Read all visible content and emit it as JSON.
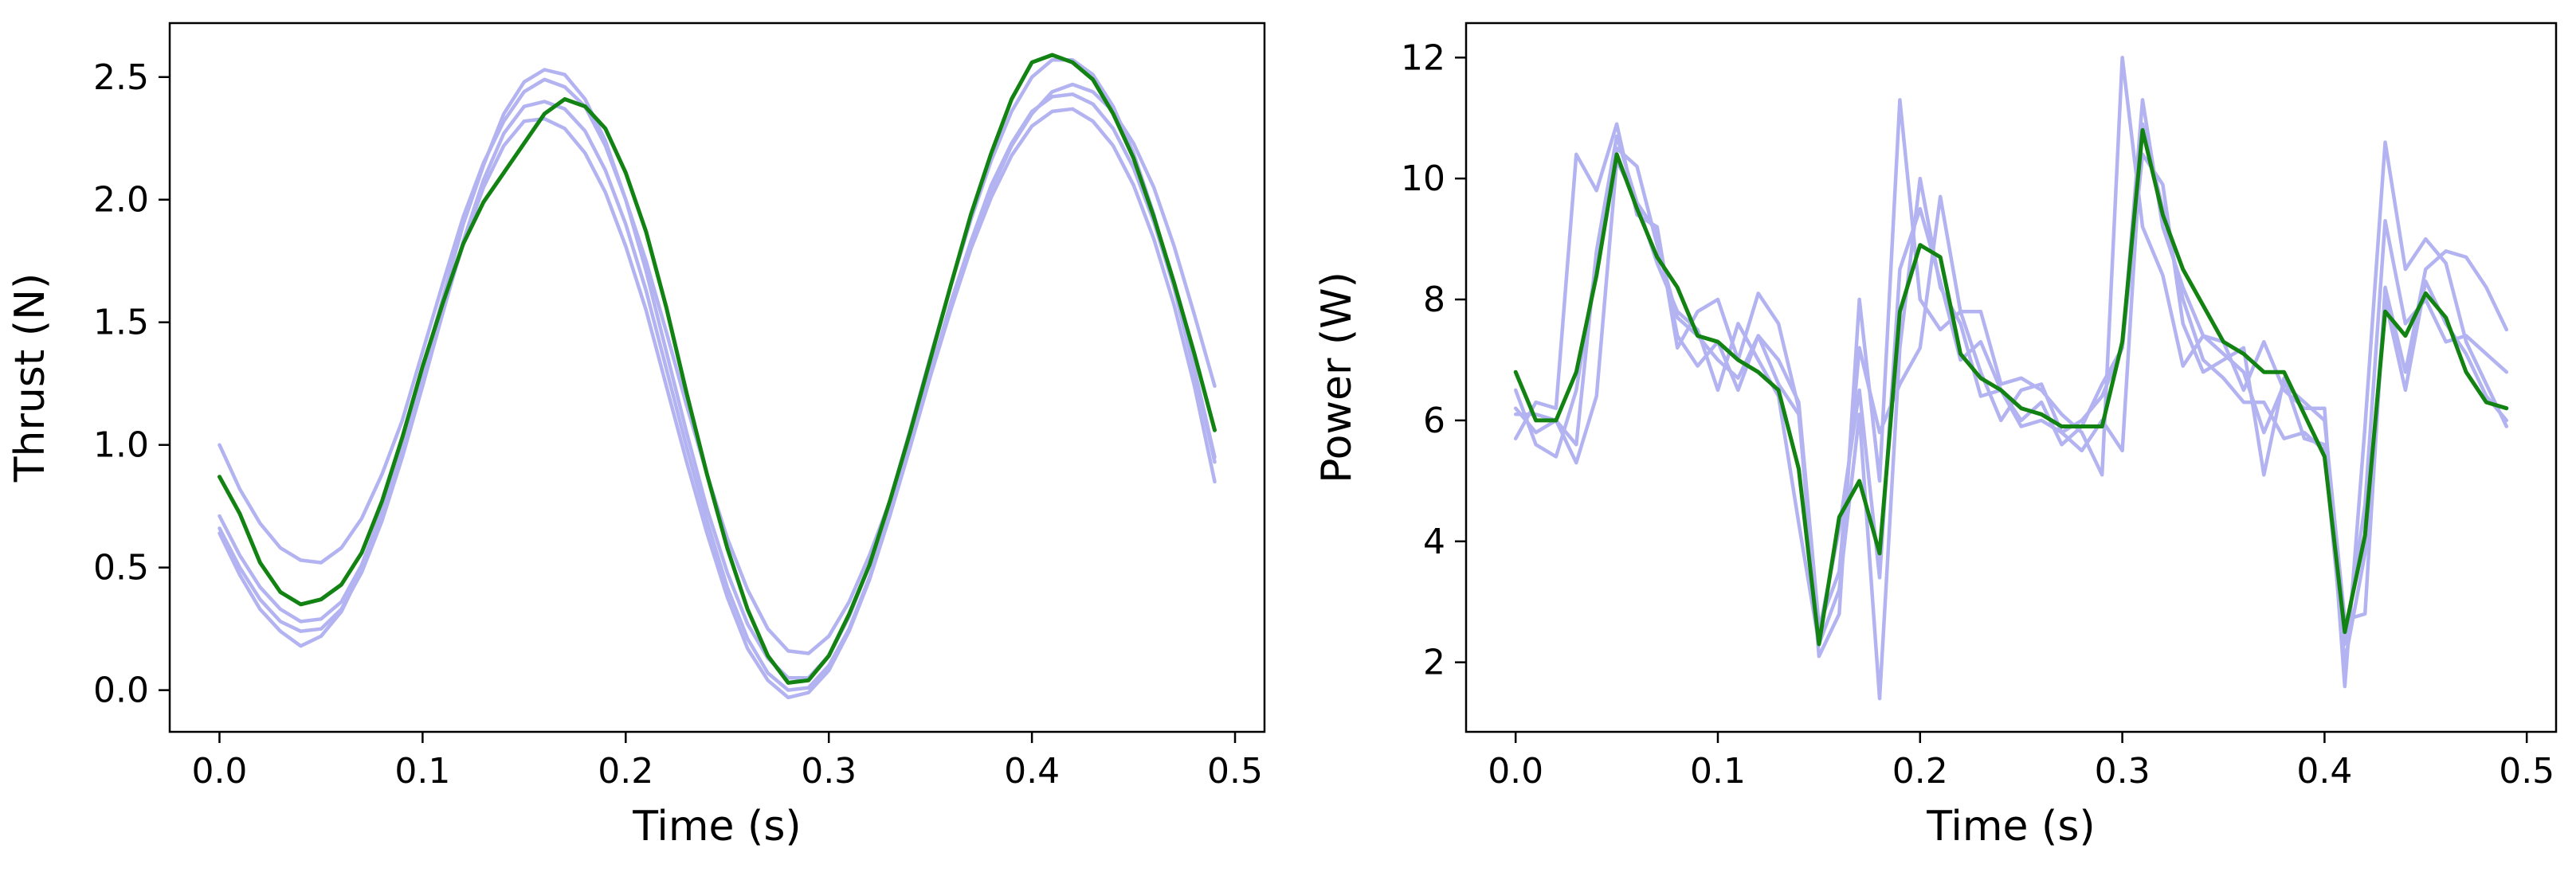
{
  "colors": {
    "individual_runs": "#b3b3f2",
    "mean": "#128212",
    "axes": "#000000",
    "background": "#ffffff"
  },
  "chart_data": [
    {
      "type": "line",
      "title": "",
      "xlabel": "Time (s)",
      "ylabel": "Thrust (N)",
      "xlim": [
        -0.0245,
        0.5145
      ],
      "ylim": [
        -0.17,
        2.72
      ],
      "xticks": [
        0.0,
        0.1,
        0.2,
        0.3,
        0.4,
        0.5
      ],
      "xtick_labels": [
        "0.0",
        "0.1",
        "0.2",
        "0.3",
        "0.4",
        "0.5"
      ],
      "yticks": [
        0.0,
        0.5,
        1.0,
        1.5,
        2.0,
        2.5
      ],
      "ytick_labels": [
        "0.0",
        "0.5",
        "1.0",
        "1.5",
        "2.0",
        "2.5"
      ],
      "grid": false,
      "legend": "none",
      "x": [
        0.0,
        0.01,
        0.02,
        0.03,
        0.04,
        0.05,
        0.06,
        0.07,
        0.08,
        0.09,
        0.1,
        0.11,
        0.12,
        0.13,
        0.14,
        0.15,
        0.16,
        0.17,
        0.18,
        0.19,
        0.2,
        0.21,
        0.22,
        0.23,
        0.24,
        0.25,
        0.26,
        0.27,
        0.28,
        0.29,
        0.3,
        0.31,
        0.32,
        0.33,
        0.34,
        0.35,
        0.36,
        0.37,
        0.38,
        0.39,
        0.4,
        0.41,
        0.42,
        0.43,
        0.44,
        0.45,
        0.46,
        0.47,
        0.48,
        0.49
      ],
      "series": [
        {
          "role": "run",
          "values": [
            1.0,
            0.82,
            0.68,
            0.58,
            0.53,
            0.52,
            0.58,
            0.7,
            0.88,
            1.1,
            1.38,
            1.66,
            1.93,
            2.15,
            2.32,
            2.44,
            2.49,
            2.46,
            2.38,
            2.22,
            2.0,
            1.75,
            1.46,
            1.16,
            0.88,
            0.62,
            0.41,
            0.25,
            0.16,
            0.15,
            0.22,
            0.36,
            0.55,
            0.77,
            1.03,
            1.3,
            1.57,
            1.82,
            2.04,
            2.22,
            2.35,
            2.44,
            2.47,
            2.44,
            2.36,
            2.23,
            2.05,
            1.81,
            1.53,
            1.24
          ]
        },
        {
          "role": "run",
          "values": [
            0.71,
            0.55,
            0.42,
            0.33,
            0.28,
            0.29,
            0.36,
            0.51,
            0.73,
            0.99,
            1.3,
            1.6,
            1.9,
            2.14,
            2.35,
            2.48,
            2.53,
            2.51,
            2.41,
            2.24,
            2.0,
            1.71,
            1.38,
            1.05,
            0.74,
            0.48,
            0.27,
            0.13,
            0.05,
            0.05,
            0.14,
            0.3,
            0.51,
            0.77,
            1.06,
            1.36,
            1.65,
            1.92,
            2.16,
            2.36,
            2.5,
            2.57,
            2.57,
            2.51,
            2.38,
            2.19,
            1.94,
            1.64,
            1.3,
            0.93
          ]
        },
        {
          "role": "run",
          "values": [
            0.64,
            0.47,
            0.33,
            0.24,
            0.18,
            0.22,
            0.32,
            0.49,
            0.71,
            0.97,
            1.26,
            1.55,
            1.82,
            2.05,
            2.22,
            2.32,
            2.33,
            2.29,
            2.19,
            2.03,
            1.81,
            1.55,
            1.24,
            0.93,
            0.64,
            0.38,
            0.17,
            0.04,
            -0.03,
            -0.01,
            0.08,
            0.24,
            0.45,
            0.71,
            0.99,
            1.28,
            1.55,
            1.8,
            2.01,
            2.18,
            2.3,
            2.36,
            2.37,
            2.32,
            2.22,
            2.06,
            1.84,
            1.57,
            1.24,
            0.85
          ]
        },
        {
          "role": "run",
          "values": [
            0.66,
            0.5,
            0.37,
            0.28,
            0.24,
            0.25,
            0.33,
            0.48,
            0.69,
            0.95,
            1.24,
            1.54,
            1.83,
            2.08,
            2.27,
            2.38,
            2.4,
            2.37,
            2.28,
            2.12,
            1.9,
            1.63,
            1.31,
            0.99,
            0.69,
            0.42,
            0.21,
            0.07,
            0.0,
            0.01,
            0.1,
            0.25,
            0.46,
            0.72,
            1.0,
            1.29,
            1.58,
            1.83,
            2.06,
            2.23,
            2.36,
            2.42,
            2.43,
            2.39,
            2.29,
            2.13,
            1.91,
            1.64,
            1.31,
            0.95
          ]
        },
        {
          "role": "mean",
          "values": [
            0.87,
            0.72,
            0.52,
            0.4,
            0.35,
            0.37,
            0.43,
            0.56,
            0.77,
            1.03,
            1.32,
            1.58,
            1.82,
            1.99,
            2.11,
            2.23,
            2.35,
            2.41,
            2.38,
            2.29,
            2.11,
            1.87,
            1.56,
            1.21,
            0.88,
            0.58,
            0.33,
            0.14,
            0.03,
            0.04,
            0.14,
            0.31,
            0.51,
            0.77,
            1.05,
            1.35,
            1.65,
            1.94,
            2.19,
            2.41,
            2.56,
            2.59,
            2.56,
            2.49,
            2.35,
            2.17,
            1.93,
            1.66,
            1.37,
            1.06
          ]
        }
      ]
    },
    {
      "type": "line",
      "title": "",
      "xlabel": "Time (s)",
      "ylabel": "Power (W)",
      "xlim": [
        -0.0245,
        0.5145
      ],
      "ylim": [
        0.85,
        12.57
      ],
      "xticks": [
        0.0,
        0.1,
        0.2,
        0.3,
        0.4,
        0.5
      ],
      "xtick_labels": [
        "0.0",
        "0.1",
        "0.2",
        "0.3",
        "0.4",
        "0.5"
      ],
      "yticks": [
        2,
        4,
        6,
        8,
        10,
        12
      ],
      "ytick_labels": [
        "2",
        "4",
        "6",
        "8",
        "10",
        "12"
      ],
      "grid": false,
      "legend": "none",
      "x": [
        0.0,
        0.01,
        0.02,
        0.03,
        0.04,
        0.05,
        0.06,
        0.07,
        0.08,
        0.09,
        0.1,
        0.11,
        0.12,
        0.13,
        0.14,
        0.15,
        0.16,
        0.17,
        0.18,
        0.19,
        0.2,
        0.21,
        0.22,
        0.23,
        0.24,
        0.25,
        0.26,
        0.27,
        0.28,
        0.29,
        0.3,
        0.31,
        0.32,
        0.33,
        0.34,
        0.35,
        0.36,
        0.37,
        0.38,
        0.39,
        0.4,
        0.41,
        0.42,
        0.43,
        0.44,
        0.45,
        0.46,
        0.47,
        0.48,
        0.49
      ],
      "series": [
        {
          "role": "run",
          "values": [
            5.7,
            6.3,
            6.2,
            10.4,
            9.8,
            10.9,
            9.4,
            9.2,
            7.2,
            7.8,
            8.0,
            7.0,
            8.1,
            7.6,
            6.2,
            2.1,
            2.8,
            8.0,
            5.0,
            11.3,
            8.0,
            7.5,
            7.8,
            7.8,
            6.6,
            6.7,
            6.5,
            6.1,
            5.8,
            5.1,
            12.0,
            9.2,
            8.4,
            6.9,
            7.4,
            7.3,
            6.5,
            7.3,
            6.5,
            6.2,
            6.2,
            1.6,
            5.9,
            10.6,
            8.5,
            9.0,
            8.6,
            7.3,
            6.6,
            5.9
          ]
        },
        {
          "role": "run",
          "values": [
            6.1,
            6.1,
            6.0,
            5.6,
            8.8,
            10.7,
            9.6,
            8.6,
            7.8,
            7.5,
            6.5,
            7.6,
            7.0,
            6.4,
            4.3,
            2.3,
            3.2,
            6.1,
            1.4,
            7.2,
            10.0,
            8.2,
            7.6,
            6.4,
            6.5,
            6.0,
            6.3,
            5.6,
            5.9,
            6.6,
            7.2,
            11.3,
            9.2,
            8.2,
            7.4,
            7.1,
            6.8,
            5.8,
            6.6,
            6.3,
            6.0,
            2.7,
            2.8,
            8.2,
            6.8,
            8.5,
            8.8,
            8.7,
            8.2,
            7.5
          ]
        },
        {
          "role": "run",
          "values": [
            6.5,
            5.6,
            5.4,
            6.5,
            8.6,
            10.5,
            10.2,
            8.9,
            7.7,
            7.4,
            7.0,
            6.7,
            7.4,
            7.0,
            6.3,
            2.6,
            3.5,
            7.2,
            5.8,
            6.6,
            7.2,
            9.7,
            7.8,
            6.8,
            6.0,
            6.5,
            6.6,
            5.8,
            6.0,
            6.4,
            7.2,
            10.4,
            9.9,
            7.6,
            6.8,
            7.0,
            7.2,
            5.1,
            6.7,
            5.7,
            5.6,
            2.3,
            4.6,
            9.3,
            7.6,
            8.0,
            7.3,
            7.4,
            7.1,
            6.8
          ]
        },
        {
          "role": "run",
          "values": [
            6.2,
            5.8,
            6.0,
            5.3,
            6.4,
            10.3,
            9.6,
            9.1,
            7.4,
            6.9,
            7.3,
            6.5,
            7.4,
            6.6,
            6.1,
            2.5,
            4.2,
            6.5,
            3.4,
            8.5,
            9.5,
            8.3,
            7.0,
            7.3,
            6.5,
            5.9,
            6.0,
            5.8,
            5.5,
            6.0,
            5.5,
            10.9,
            9.5,
            8.0,
            7.0,
            6.7,
            6.3,
            6.3,
            5.7,
            5.8,
            5.5,
            2.0,
            3.8,
            8.0,
            6.5,
            8.3,
            7.6,
            7.1,
            6.4,
            6.0
          ]
        },
        {
          "role": "mean",
          "values": [
            6.8,
            6.0,
            6.0,
            6.8,
            8.4,
            10.4,
            9.5,
            8.7,
            8.2,
            7.4,
            7.3,
            7.0,
            6.8,
            6.5,
            5.2,
            2.3,
            4.4,
            5.0,
            3.8,
            7.8,
            8.9,
            8.7,
            7.1,
            6.7,
            6.5,
            6.2,
            6.1,
            5.9,
            5.9,
            5.9,
            7.3,
            10.8,
            9.4,
            8.5,
            7.9,
            7.3,
            7.1,
            6.8,
            6.8,
            6.1,
            5.4,
            2.5,
            4.1,
            7.8,
            7.4,
            8.1,
            7.7,
            6.8,
            6.3,
            6.2
          ]
        }
      ]
    }
  ]
}
